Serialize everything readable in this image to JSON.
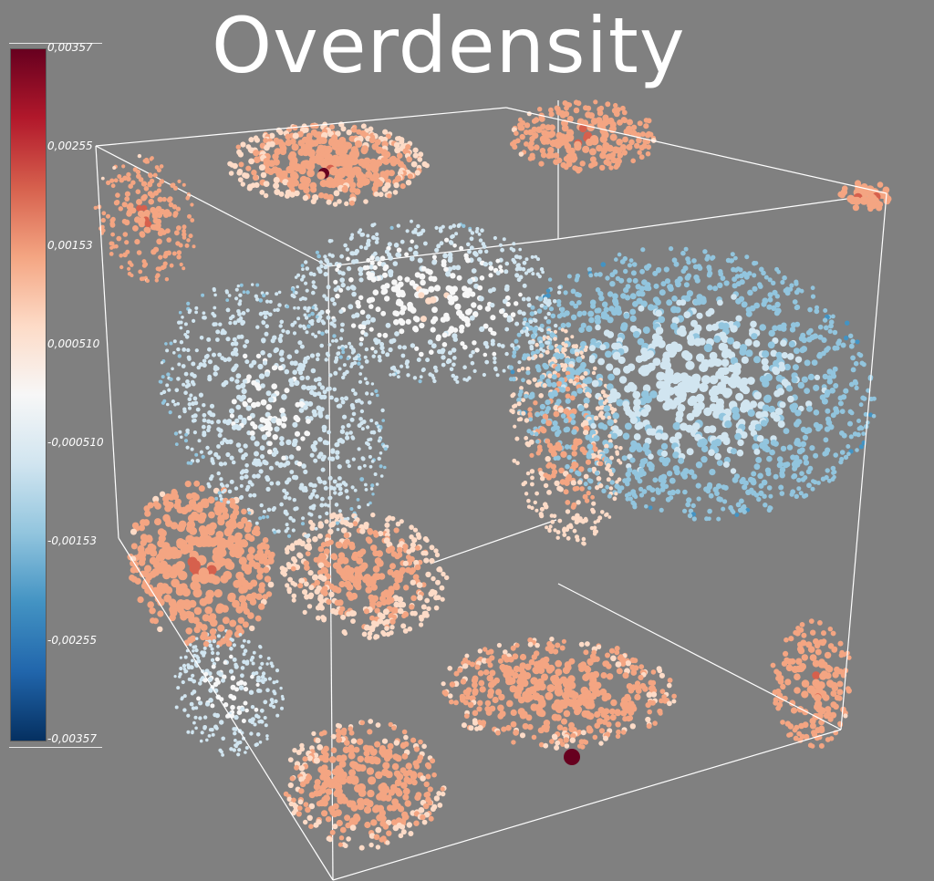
{
  "title": "Overdensity",
  "colorbar": {
    "ticks": [
      "0,00357",
      "0,00255",
      "0,00153",
      "0,000510",
      "-0,000510",
      "-0,00153",
      "-0,00255",
      "-0,00357"
    ],
    "colors": [
      "#67001f",
      "#b2182b",
      "#d6604d",
      "#f4a582",
      "#fddbc7",
      "#f7f7f7",
      "#d1e5f0",
      "#92c5de",
      "#4393c3",
      "#2166ac",
      "#053061"
    ]
  },
  "scene": {
    "background": "#808080",
    "outline_color": "#ffffff"
  }
}
